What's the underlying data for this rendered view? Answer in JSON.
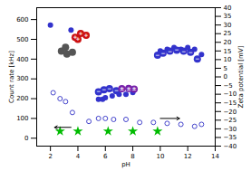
{
  "chart_data": {
    "type": "scatter",
    "xlabel": "pH",
    "ylabel": "Count rate [kHz]",
    "y2label": "Zeta potential [mV]",
    "xlim": [
      1,
      14
    ],
    "ylim": [
      -40,
      660
    ],
    "y2lim": [
      -40,
      40
    ],
    "xticks": [
      2,
      4,
      6,
      8,
      10,
      12,
      14
    ],
    "yticks": [
      0,
      100,
      200,
      300,
      400,
      500,
      600
    ],
    "y2ticks": [
      -40,
      -35,
      -30,
      -25,
      -20,
      -15,
      -10,
      -5,
      0,
      5,
      10,
      15,
      20,
      25,
      30,
      35,
      40
    ],
    "grid": false,
    "series": [
      {
        "x": [
          2.2,
          2.7,
          3.1,
          3.6,
          4.8,
          5.5,
          6.0,
          6.6,
          7.5,
          8.5,
          9.5,
          10.5,
          11.5,
          12.5,
          13.0
        ],
        "values": [
          230,
          200,
          185,
          130,
          85,
          100,
          100,
          95,
          95,
          80,
          80,
          75,
          70,
          60,
          70
        ],
        "color": "#4444cc",
        "marker": "open_circle"
      },
      {
        "axis": "y2",
        "x": [
          2.0,
          3.5,
          5.5,
          5.8,
          6.0,
          6.5,
          7.0,
          7.5,
          8.0,
          10.0,
          10.5,
          11.0,
          11.5,
          12.0,
          12.5,
          13.0
        ],
        "values": [
          30,
          27,
          -13,
          -13,
          -12,
          -11,
          -10,
          -10,
          -9,
          15,
          16,
          17,
          16,
          17,
          16,
          13
        ],
        "color": "#3333cc",
        "marker": "circle"
      },
      {
        "x": [
          2.7,
          4.0,
          6.2,
          8.0,
          9.8
        ],
        "values": [
          35,
          35,
          35,
          35,
          35
        ],
        "color": "#00bb00",
        "marker": "star"
      },
      {
        "x": [
          2.8,
          3.2,
          3.6,
          3.1
        ],
        "values": [
          440,
          425,
          435,
          460
        ],
        "color": "#555555",
        "marker": "blob"
      },
      {
        "x": [
          3.8,
          4.2,
          4.6,
          4.0
        ],
        "values": [
          510,
          530,
          520,
          500
        ],
        "color": "#cc1111",
        "marker": "blob",
        "mark_label": "+"
      },
      {
        "x": [
          5.5,
          5.9,
          6.3,
          6.8
        ],
        "values": [
          235,
          245,
          250,
          240
        ],
        "color": "#3333cc",
        "marker": "blob",
        "mark_label": "−"
      },
      {
        "x": [
          7.2,
          7.7,
          8.1
        ],
        "values": [
          250,
          252,
          248
        ],
        "color": "#7722aa",
        "marker": "blob",
        "mark_label": "±"
      },
      {
        "x": [
          9.8,
          10.2,
          10.7,
          11.2,
          11.7,
          12.2,
          12.7
        ],
        "values": [
          420,
          430,
          440,
          445,
          440,
          435,
          400
        ],
        "color": "#3333cc",
        "marker": "blob",
        "mark_label": "−"
      }
    ],
    "annotations": [
      {
        "type": "arrow",
        "x_start": 3.5,
        "x_end": 2.3,
        "y": 55,
        "color": "#000000"
      },
      {
        "type": "arrow",
        "x_start": 10.0,
        "x_end": 11.4,
        "y": 100,
        "color": "#000000"
      }
    ]
  }
}
